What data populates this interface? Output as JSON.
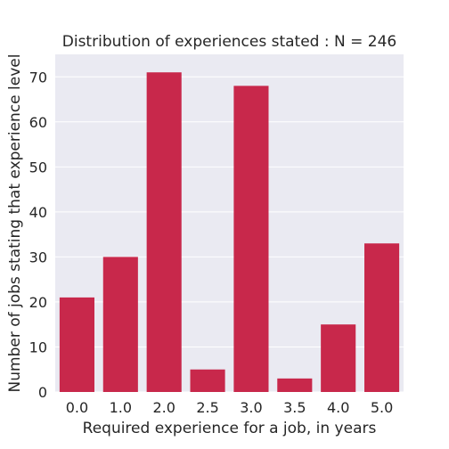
{
  "chart_data": {
    "type": "bar",
    "title": "Distribution of experiences stated : N = 246",
    "xlabel": "Required experience for a job, in years",
    "ylabel": "Number of jobs stating that experience level",
    "categories": [
      "0.0",
      "1.0",
      "2.0",
      "2.5",
      "3.0",
      "3.5",
      "4.0",
      "5.0"
    ],
    "values": [
      21,
      30,
      71,
      5,
      68,
      3,
      15,
      33
    ],
    "ylim": [
      0,
      75
    ],
    "yticks": [
      0,
      10,
      20,
      30,
      40,
      50,
      60,
      70
    ],
    "grid": true,
    "bar_color": "#c8284b",
    "background_color": "#eaeaf2",
    "grid_color": "#ffffff"
  }
}
